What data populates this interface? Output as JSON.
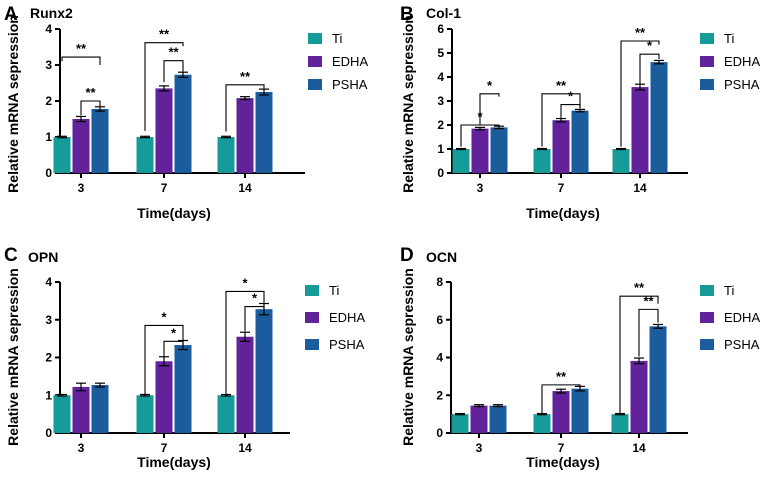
{
  "colors": {
    "ti": "#159b9a",
    "edha": "#62229a",
    "psha": "#1b5c9c",
    "axis": "#000000"
  },
  "chart_data": [
    {
      "panel_letter": "A",
      "title": "Runx2",
      "type": "bar",
      "categories": [
        "3",
        "7",
        "14"
      ],
      "xlabel": "Time(days)",
      "ylabel": "Relative mRNA sepression",
      "ylim": [
        0,
        4
      ],
      "yticks": [
        "0",
        "1",
        "2",
        "3",
        "4"
      ],
      "legend_position": "right",
      "series": [
        {
          "name": "Ti",
          "color_key": "ti",
          "values": [
            1.0,
            1.0,
            1.0
          ],
          "errors": [
            0.02,
            0.02,
            0.02
          ]
        },
        {
          "name": "EDHA",
          "color_key": "edha",
          "values": [
            1.5,
            2.35,
            2.08
          ],
          "errors": [
            0.07,
            0.07,
            0.04
          ]
        },
        {
          "name": "PSHA",
          "color_key": "psha",
          "values": [
            1.78,
            2.73,
            2.25
          ],
          "errors": [
            0.06,
            0.07,
            0.08
          ]
        }
      ],
      "significance": [
        {
          "category": 0,
          "from": 0,
          "to": 2,
          "label": "**",
          "level": 3.22,
          "drop_left": 0.12,
          "drop_right": 0.22
        },
        {
          "category": 0,
          "from": 1,
          "to": 2,
          "label": "**",
          "level": 2.0,
          "drop_left": 0.4,
          "drop_right": 0.14
        },
        {
          "category": 1,
          "from": 0,
          "to": 2,
          "label": "**",
          "level": 3.62,
          "drop_left": 2.45,
          "drop_right": 0.1
        },
        {
          "category": 1,
          "from": 1,
          "to": 2,
          "label": "**",
          "level": 3.12,
          "drop_left": 0.6,
          "drop_right": 0.3
        },
        {
          "category": 2,
          "from": 0,
          "to": 2,
          "label": "**",
          "level": 2.45,
          "drop_left": 1.3,
          "drop_right": 0.1
        }
      ]
    },
    {
      "panel_letter": "B",
      "title": "Col-1",
      "type": "bar",
      "categories": [
        "3",
        "7",
        "14"
      ],
      "xlabel": "Time(days)",
      "ylabel": "Relative mRNA sepression",
      "ylim": [
        0,
        6
      ],
      "yticks": [
        "0",
        "1",
        "2",
        "3",
        "4",
        "5",
        "6"
      ],
      "legend_position": "right",
      "series": [
        {
          "name": "Ti",
          "color_key": "ti",
          "values": [
            1.0,
            1.0,
            1.0
          ],
          "errors": [
            0.02,
            0.02,
            0.02
          ]
        },
        {
          "name": "EDHA",
          "color_key": "edha",
          "values": [
            1.85,
            2.2,
            3.58
          ],
          "errors": [
            0.05,
            0.07,
            0.12
          ]
        },
        {
          "name": "PSHA",
          "color_key": "psha",
          "values": [
            1.9,
            2.6,
            4.62
          ],
          "errors": [
            0.05,
            0.05,
            0.07
          ]
        }
      ],
      "significance": [
        {
          "category": 0,
          "from": 0,
          "to": 2,
          "label": "*",
          "level": 2.0,
          "drop_left": 0.9,
          "drop_right": 0.05
        },
        {
          "category": 0,
          "from": 1,
          "to": 2,
          "label": "*",
          "level": 3.3,
          "drop_left": 1.3,
          "drop_right": 0.12
        },
        {
          "category": 1,
          "from": 0,
          "to": 2,
          "label": "**",
          "level": 3.3,
          "drop_left": 2.2,
          "drop_right": 0.6
        },
        {
          "category": 1,
          "from": 1,
          "to": 2,
          "label": "*",
          "level": 2.85,
          "drop_left": 0.55,
          "drop_right": 0.15
        },
        {
          "category": 2,
          "from": 0,
          "to": 2,
          "label": "**",
          "level": 5.5,
          "drop_left": 4.4,
          "drop_right": 0.15
        },
        {
          "category": 2,
          "from": 1,
          "to": 2,
          "label": "*",
          "level": 4.95,
          "drop_left": 1.25,
          "drop_right": 0.2
        }
      ]
    },
    {
      "panel_letter": "C",
      "title": "OPN",
      "type": "bar",
      "categories": [
        "3",
        "7",
        "14"
      ],
      "xlabel": "Time(days)",
      "ylabel": "Relative mRNA sepression",
      "ylim": [
        0,
        4
      ],
      "yticks": [
        "0",
        "1",
        "2",
        "3",
        "4"
      ],
      "legend_position": "right",
      "series": [
        {
          "name": "Ti",
          "color_key": "ti",
          "values": [
            1.0,
            1.0,
            1.0
          ],
          "errors": [
            0.02,
            0.02,
            0.02
          ]
        },
        {
          "name": "EDHA",
          "color_key": "edha",
          "values": [
            1.22,
            1.9,
            2.55
          ],
          "errors": [
            0.1,
            0.12,
            0.12
          ]
        },
        {
          "name": "PSHA",
          "color_key": "psha",
          "values": [
            1.27,
            2.33,
            3.28
          ],
          "errors": [
            0.05,
            0.12,
            0.15
          ]
        }
      ],
      "significance": [
        {
          "category": 1,
          "from": 0,
          "to": 2,
          "label": "*",
          "level": 2.85,
          "drop_left": 1.85,
          "drop_right": 0.4
        },
        {
          "category": 1,
          "from": 1,
          "to": 2,
          "label": "*",
          "level": 2.43,
          "drop_left": 0.43,
          "drop_right": 0.1
        },
        {
          "category": 2,
          "from": 0,
          "to": 2,
          "label": "*",
          "level": 3.75,
          "drop_left": 2.75,
          "drop_right": 0.3
        },
        {
          "category": 2,
          "from": 1,
          "to": 2,
          "label": "*",
          "level": 3.35,
          "drop_left": 0.65,
          "drop_right": 0.05
        }
      ]
    },
    {
      "panel_letter": "D",
      "title": "OCN",
      "type": "bar",
      "categories": [
        "3",
        "7",
        "14"
      ],
      "xlabel": "Time(days)",
      "ylabel": "Relative mRNA sepression",
      "ylim": [
        0,
        8
      ],
      "yticks": [
        "0",
        "2",
        "4",
        "6",
        "8"
      ],
      "legend_position": "right",
      "series": [
        {
          "name": "Ti",
          "color_key": "ti",
          "values": [
            1.0,
            1.0,
            1.0
          ],
          "errors": [
            0.03,
            0.03,
            0.03
          ]
        },
        {
          "name": "EDHA",
          "color_key": "edha",
          "values": [
            1.45,
            2.22,
            3.82
          ],
          "errors": [
            0.05,
            0.1,
            0.15
          ]
        },
        {
          "name": "PSHA",
          "color_key": "psha",
          "values": [
            1.45,
            2.35,
            5.65
          ],
          "errors": [
            0.05,
            0.12,
            0.1
          ]
        }
      ],
      "significance": [
        {
          "category": 1,
          "from": 0,
          "to": 2,
          "label": "**",
          "level": 2.55,
          "drop_left": 1.5,
          "drop_right": 0.1
        },
        {
          "category": 2,
          "from": 0,
          "to": 2,
          "label": "**",
          "level": 7.25,
          "drop_left": 6.2,
          "drop_right": 0.4
        },
        {
          "category": 2,
          "from": 1,
          "to": 2,
          "label": "**",
          "level": 6.55,
          "drop_left": 2.5,
          "drop_right": 0.7
        }
      ]
    }
  ]
}
